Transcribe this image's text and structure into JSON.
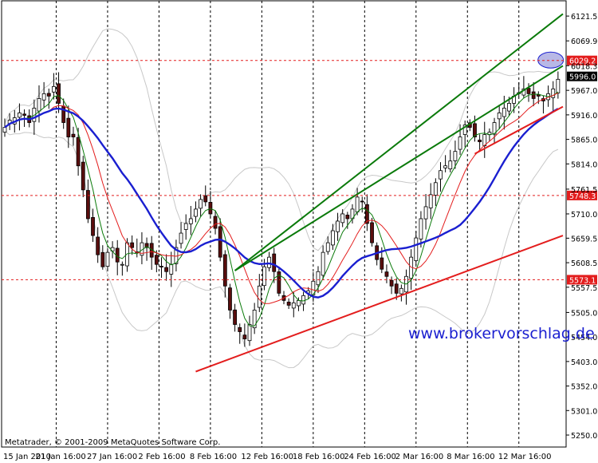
{
  "chart_data": {
    "type": "candlestick",
    "watermark": "www.brokervorschlag.de",
    "copyright": "Metatrader, © 2001-2009 MetaQuotes Software Corp.",
    "ylim": [
      5250,
      6130
    ],
    "y_ticks": [
      "6121.5",
      "6069.9",
      "6018.3",
      "5967.0",
      "5916.0",
      "5865.0",
      "5814.0",
      "5761.5",
      "5710.0",
      "5659.5",
      "5608.5",
      "5557.5",
      "5505.0",
      "5454.0",
      "5403.0",
      "5352.0",
      "5301.0",
      "5250.0"
    ],
    "x_ticks": [
      "15 Jan 2010",
      "21 Jan 16:00",
      "27 Jan 16:00",
      "2 Feb 16:00",
      "8 Feb 16:00",
      "12 Feb 16:00",
      "18 Feb 16:00",
      "24 Feb 16:00",
      "2 Mar 16:00",
      "8 Mar 16:00",
      "12 Mar 16:00"
    ],
    "x_range": [
      0,
      114
    ],
    "price_labels": [
      {
        "text": "6029.2",
        "value": 6029.2,
        "color": "#e31d1d"
      },
      {
        "text": "5996.0",
        "value": 5996.0,
        "color": "#000000"
      },
      {
        "text": "5748.3",
        "value": 5748.3,
        "color": "#e31d1d"
      },
      {
        "text": "5573.1",
        "value": 5573.1,
        "color": "#e31d1d"
      }
    ],
    "hlines": [
      6029.2,
      5748.3,
      5573.1
    ],
    "close": [
      5890,
      5905,
      5910,
      5920,
      5915,
      5900,
      5930,
      5950,
      5960,
      5955,
      5975,
      5940,
      5900,
      5870,
      5870,
      5810,
      5760,
      5700,
      5665,
      5625,
      5600,
      5630,
      5640,
      5610,
      5605,
      5650,
      5640,
      5630,
      5650,
      5640,
      5620,
      5605,
      5600,
      5590,
      5605,
      5640,
      5670,
      5690,
      5700,
      5720,
      5740,
      5735,
      5710,
      5680,
      5620,
      5560,
      5510,
      5480,
      5465,
      5450,
      5480,
      5510,
      5560,
      5600,
      5620,
      5590,
      5545,
      5530,
      5520,
      5525,
      5530,
      5540,
      5550,
      5570,
      5590,
      5630,
      5650,
      5675,
      5695,
      5710,
      5700,
      5720,
      5745,
      5735,
      5690,
      5650,
      5615,
      5595,
      5580,
      5560,
      5545,
      5555,
      5580,
      5620,
      5660,
      5700,
      5725,
      5750,
      5775,
      5800,
      5810,
      5820,
      5840,
      5870,
      5895,
      5890,
      5870,
      5860,
      5875,
      5880,
      5900,
      5920,
      5930,
      5940,
      5955,
      5960,
      5970,
      5960,
      5950,
      5955,
      5945,
      5960,
      5970,
      5990
    ],
    "trendlines": [
      {
        "color": "#0a7a0a",
        "from": [
          47,
          5592
        ],
        "to": [
          114,
          6126
        ]
      },
      {
        "color": "#0a7a0a",
        "from": [
          47,
          5592
        ],
        "to": [
          114,
          6018
        ]
      },
      {
        "color": "#e31d1d",
        "from": [
          39,
          5382
        ],
        "to": [
          114,
          5665
        ]
      },
      {
        "color": "#e31d1d",
        "from": [
          96,
          5835
        ],
        "to": [
          114,
          5933
        ]
      }
    ],
    "ellipse": {
      "x": 111.5,
      "y": 6030
    }
  }
}
